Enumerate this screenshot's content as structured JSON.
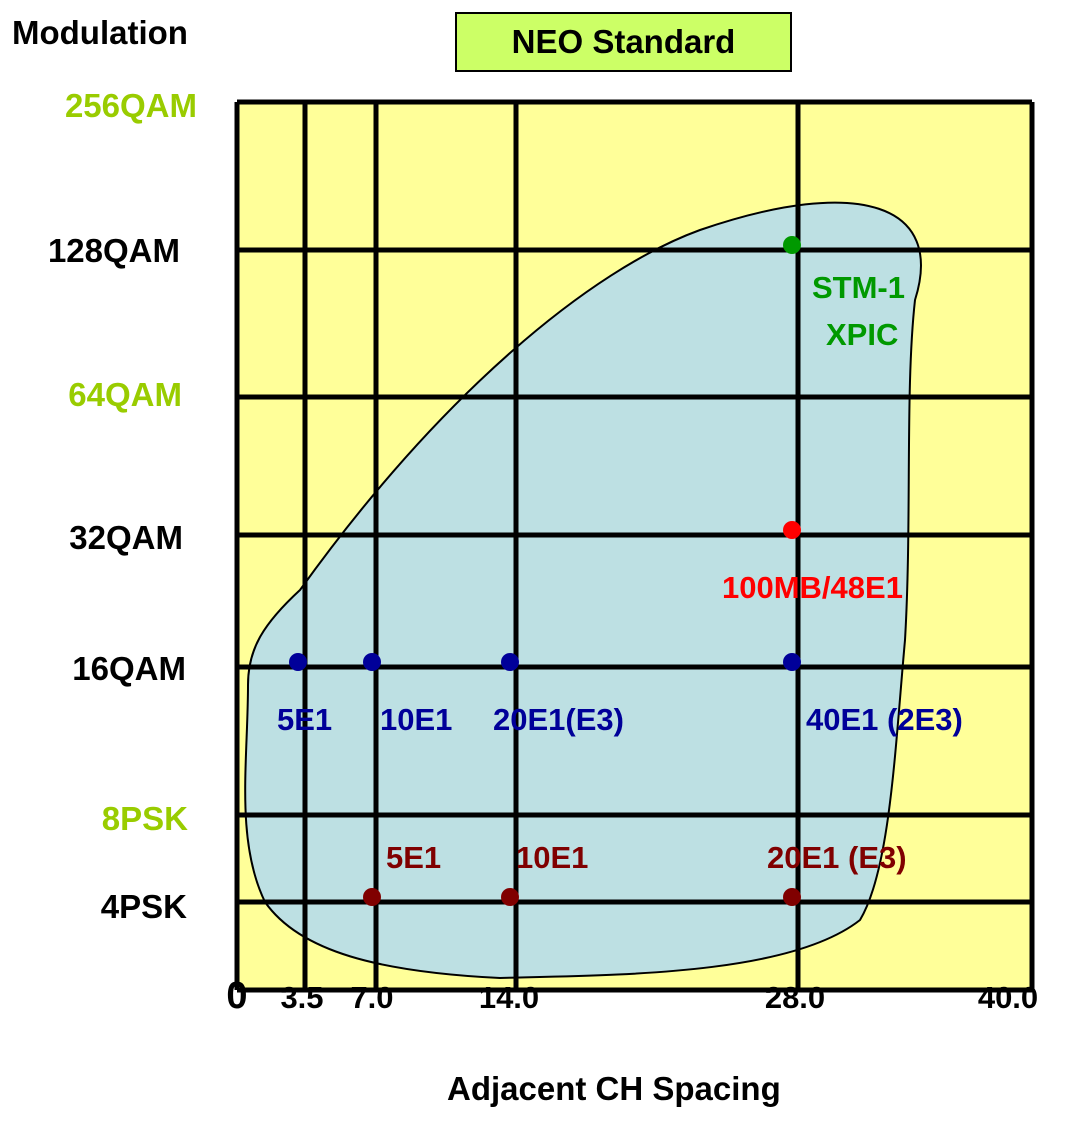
{
  "chart_data": {
    "type": "scatter",
    "title": "NEO Standard",
    "ylabel": "Modulation",
    "xlabel": "Adjacent CH Spacing",
    "x_ticks": [
      {
        "value": 0,
        "label": "0"
      },
      {
        "value": 3.5,
        "label": "3.5"
      },
      {
        "value": 7.0,
        "label": "7.0"
      },
      {
        "value": 14.0,
        "label": "14.0"
      },
      {
        "value": 28.0,
        "label": "28.0"
      },
      {
        "value": 40.0,
        "label": "40.0"
      }
    ],
    "y_categories": [
      {
        "label": "256QAM",
        "color": "#99cc00"
      },
      {
        "label": "128QAM",
        "color": "#000000"
      },
      {
        "label": "64QAM",
        "color": "#99cc00"
      },
      {
        "label": "32QAM",
        "color": "#000000"
      },
      {
        "label": "16QAM",
        "color": "#000000"
      },
      {
        "label": "8PSK",
        "color": "#99cc00"
      },
      {
        "label": "4PSK",
        "color": "#000000"
      }
    ],
    "series": [
      {
        "color": "#009900",
        "points": [
          {
            "x": 28.0,
            "y": "128QAM",
            "label": "STM-1\nXPIC"
          }
        ]
      },
      {
        "color": "#ff0000",
        "points": [
          {
            "x": 28.0,
            "y": "32QAM",
            "label": "100MB/48E1"
          }
        ]
      },
      {
        "color": "#000099",
        "points": [
          {
            "x": 3.5,
            "y": "16QAM",
            "label": "5E1"
          },
          {
            "x": 7.0,
            "y": "16QAM",
            "label": "10E1"
          },
          {
            "x": 14.0,
            "y": "16QAM",
            "label": "20E1(E3)"
          },
          {
            "x": 28.0,
            "y": "16QAM",
            "label": "40E1 (2E3)"
          }
        ]
      },
      {
        "color": "#800000",
        "points": [
          {
            "x": 7.0,
            "y": "4PSK",
            "label": "5E1"
          },
          {
            "x": 14.0,
            "y": "4PSK",
            "label": "10E1"
          },
          {
            "x": 28.0,
            "y": "4PSK",
            "label": "20E1 (E3)"
          }
        ]
      }
    ],
    "colors": {
      "plot_background": "#ffff99",
      "region_fill": "#bde0e3",
      "title_box": "#ccff66"
    },
    "grid": true
  }
}
